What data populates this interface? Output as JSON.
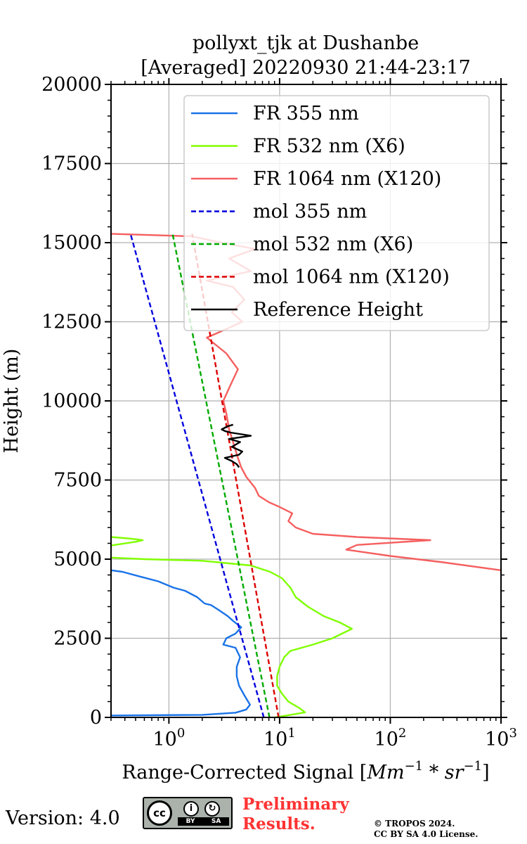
{
  "chart_data": {
    "type": "line",
    "title": [
      "pollyxt_tjk at Dushanbe",
      "[Averaged] 20220930 21:44-23:17"
    ],
    "xlabel": "Range-Corrected Signal [Mm^-1 * sr^-1]",
    "ylabel": "Height (m)",
    "xscale": "log",
    "xlim": [
      0.3,
      1000
    ],
    "ylim": [
      0,
      20000
    ],
    "yticks": [
      0,
      2500,
      5000,
      7500,
      10000,
      12500,
      15000,
      17500,
      20000
    ],
    "ytick_labels": [
      "0",
      "2500",
      "5000",
      "7500",
      "10000",
      "12500",
      "15000",
      "17500",
      "20000"
    ],
    "xticks": [
      1,
      10,
      100,
      1000
    ],
    "xtick_labels": [
      [
        "10",
        "0"
      ],
      [
        "10",
        "1"
      ],
      [
        "10",
        "2"
      ],
      [
        "10",
        "3"
      ]
    ],
    "grid": true,
    "legend_position": "top-right",
    "series": [
      {
        "name": "FR 355 nm",
        "color": "#1a73e8",
        "style": "solid",
        "points": [
          [
            0.3,
            60
          ],
          [
            2,
            80
          ],
          [
            4,
            150
          ],
          [
            5,
            250
          ],
          [
            5.4,
            400
          ],
          [
            4.8,
            700
          ],
          [
            4.3,
            1000
          ],
          [
            4.1,
            1300
          ],
          [
            4.1,
            1600
          ],
          [
            4.4,
            1900
          ],
          [
            4,
            2200
          ],
          [
            3.1,
            2300
          ],
          [
            3.3,
            2500
          ],
          [
            4,
            2650
          ],
          [
            4.5,
            2850
          ],
          [
            3.8,
            3050
          ],
          [
            3.4,
            3200
          ],
          [
            2.8,
            3400
          ],
          [
            2.4,
            3550
          ],
          [
            2.1,
            3600
          ],
          [
            1.8,
            3800
          ],
          [
            1.4,
            4000
          ],
          [
            1.1,
            4100
          ],
          [
            0.8,
            4300
          ],
          [
            0.55,
            4450
          ],
          [
            0.38,
            4600
          ],
          [
            0.3,
            4650
          ]
        ]
      },
      {
        "name": "FR 532 nm (X6)",
        "color": "#80ff00",
        "style": "solid",
        "points": [
          [
            9,
            0
          ],
          [
            12,
            70
          ],
          [
            17,
            160
          ],
          [
            15,
            300
          ],
          [
            12,
            500
          ],
          [
            10.5,
            750
          ],
          [
            9.5,
            1000
          ],
          [
            9.5,
            1300
          ],
          [
            10,
            1600
          ],
          [
            11,
            1900
          ],
          [
            12.5,
            2100
          ],
          [
            20,
            2300
          ],
          [
            30,
            2500
          ],
          [
            45,
            2800
          ],
          [
            35,
            3000
          ],
          [
            25,
            3200
          ],
          [
            18,
            3500
          ],
          [
            14,
            3800
          ],
          [
            12.5,
            4100
          ],
          [
            10.5,
            4400
          ],
          [
            8.2,
            4600
          ],
          [
            5.5,
            4800
          ],
          [
            2,
            4950
          ],
          [
            0.6,
            5000
          ],
          [
            0.3,
            5050
          ]
        ]
      },
      {
        "name": "FR 532 nm (X6) upper",
        "color": "#80ff00",
        "style": "solid",
        "points": [
          [
            0.3,
            5430
          ],
          [
            0.5,
            5550
          ],
          [
            0.58,
            5600
          ],
          [
            0.45,
            5650
          ],
          [
            0.3,
            5700
          ]
        ]
      },
      {
        "name": "FR 1064 nm (X120)",
        "color": "#f55f5f",
        "style": "solid",
        "points": [
          [
            1000,
            4650
          ],
          [
            300,
            4900
          ],
          [
            100,
            5100
          ],
          [
            40,
            5300
          ],
          [
            50,
            5450
          ],
          [
            230,
            5600
          ],
          [
            50,
            5700
          ],
          [
            20,
            5800
          ],
          [
            14,
            6000
          ],
          [
            12,
            6200
          ],
          [
            13,
            6450
          ],
          [
            10,
            6650
          ],
          [
            8,
            6800
          ],
          [
            6.5,
            7000
          ],
          [
            6,
            7250
          ],
          [
            5,
            7600
          ],
          [
            4.5,
            7900
          ],
          [
            4.2,
            8200
          ],
          [
            3.8,
            8700
          ],
          [
            3.5,
            9100
          ],
          [
            3.3,
            9600
          ],
          [
            3.1,
            10000
          ],
          [
            3.6,
            10500
          ],
          [
            4.2,
            11000
          ],
          [
            3.3,
            11500
          ],
          [
            2.2,
            12000
          ],
          [
            3.2,
            12250
          ],
          [
            4.6,
            12500
          ],
          [
            3.7,
            12800
          ],
          [
            4.8,
            13200
          ],
          [
            3.8,
            13600
          ],
          [
            2.2,
            13800
          ],
          [
            5.5,
            14100
          ],
          [
            3.5,
            14500
          ],
          [
            6,
            14800
          ],
          [
            3,
            15000
          ],
          [
            1.6,
            15200
          ],
          [
            0.3,
            15280
          ]
        ]
      },
      {
        "name": "mol 355 nm",
        "color": "#0000dd",
        "style": "dashed",
        "points": [
          [
            7.2,
            0
          ],
          [
            0.45,
            15280
          ]
        ]
      },
      {
        "name": "mol 532 nm (X6)",
        "color": "#00aa00",
        "style": "dashed",
        "points": [
          [
            8.1,
            0
          ],
          [
            1.08,
            15280
          ]
        ]
      },
      {
        "name": "mol 1064 nm (X120)",
        "color": "#dd0000",
        "style": "dashed",
        "points": [
          [
            9.8,
            0
          ],
          [
            1.62,
            15280
          ]
        ]
      },
      {
        "name": "Reference Height",
        "color": "#000000",
        "style": "solid",
        "points": [
          [
            4.3,
            7900
          ],
          [
            4.1,
            8000
          ],
          [
            3.7,
            8100
          ],
          [
            3.2,
            8200
          ],
          [
            4.3,
            8300
          ],
          [
            4.6,
            8400
          ],
          [
            3.7,
            8550
          ],
          [
            4.4,
            8700
          ],
          [
            3.5,
            8800
          ],
          [
            5.5,
            8900
          ],
          [
            3.6,
            9000
          ],
          [
            3.2,
            9050
          ],
          [
            3.0,
            9100
          ],
          [
            3.4,
            9200
          ],
          [
            3.8,
            9250
          ]
        ]
      }
    ],
    "legend": [
      "FR 355 nm",
      "FR 532 nm (X6)",
      "FR 1064 nm (X120)",
      "mol 355 nm",
      "mol 532 nm (X6)",
      "mol 1064 nm (X120)",
      "Reference Height"
    ]
  },
  "footer": {
    "version": "Version: 4.0",
    "license_badge": {
      "left": "cc",
      "by": "BY",
      "sa": "SA"
    },
    "preliminary": [
      "Preliminary",
      "Results."
    ],
    "copyright": [
      "© TROPOS 2024.",
      "CC BY SA 4.0 License."
    ]
  },
  "colors": {
    "grid": "#b0b0b0",
    "axis": "#000000",
    "preliminary": "#ff3333"
  }
}
